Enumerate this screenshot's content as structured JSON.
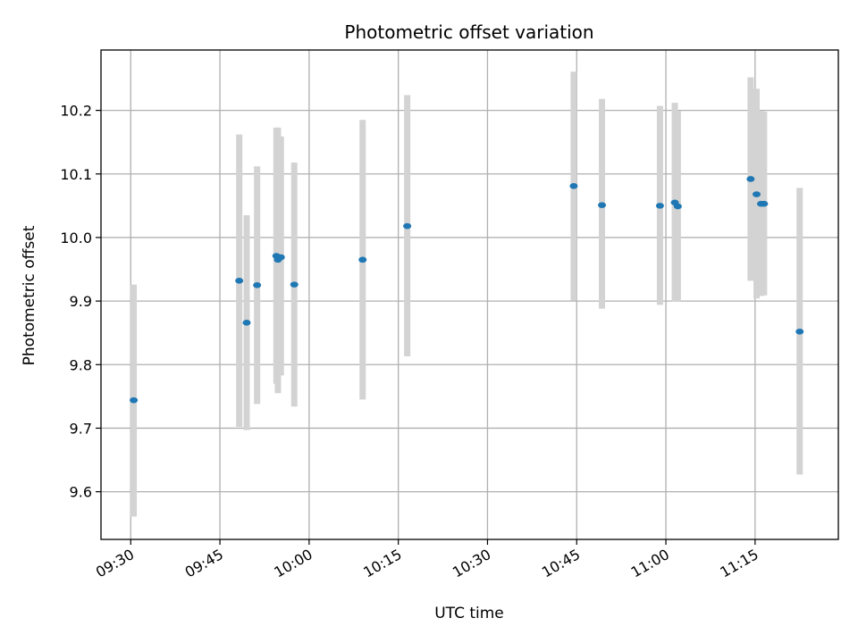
{
  "chart_data": {
    "type": "scatter",
    "title": "Photometric offset variation",
    "xlabel": "UTC time",
    "ylabel": "Photometric offset",
    "x_ticks": [
      "09:30",
      "09:45",
      "10:00",
      "10:15",
      "10:30",
      "10:45",
      "11:00",
      "11:15"
    ],
    "y_ticks": [
      "9.6",
      "9.7",
      "9.8",
      "9.9",
      "10.0",
      "10.1",
      "10.2"
    ],
    "xlim": [
      "09:25",
      "11:29"
    ],
    "ylim": [
      9.525,
      10.295
    ],
    "grid": true,
    "colors": {
      "point": "#1f77b4",
      "errorbar": "#d3d3d3",
      "grid": "#b0b0b0"
    },
    "points": [
      {
        "x": "09:30:30",
        "y": 9.744,
        "err_low": 9.561,
        "err_high": 9.926
      },
      {
        "x": "09:48:15",
        "y": 9.932,
        "err_low": 9.702,
        "err_high": 10.162
      },
      {
        "x": "09:49:30",
        "y": 9.866,
        "err_low": 9.697,
        "err_high": 10.035
      },
      {
        "x": "09:51:15",
        "y": 9.925,
        "err_low": 9.738,
        "err_high": 10.112
      },
      {
        "x": "09:54:30",
        "y": 9.971,
        "err_low": 9.77,
        "err_high": 10.173
      },
      {
        "x": "09:54:45",
        "y": 9.965,
        "err_low": 9.755,
        "err_high": 10.173
      },
      {
        "x": "09:55:15",
        "y": 9.969,
        "err_low": 9.783,
        "err_high": 10.159
      },
      {
        "x": "09:57:30",
        "y": 9.926,
        "err_low": 9.734,
        "err_high": 10.118
      },
      {
        "x": "10:09:00",
        "y": 9.965,
        "err_low": 9.745,
        "err_high": 10.185
      },
      {
        "x": "10:16:30",
        "y": 10.018,
        "err_low": 9.813,
        "err_high": 10.224
      },
      {
        "x": "10:44:30",
        "y": 10.081,
        "err_low": 9.901,
        "err_high": 10.261
      },
      {
        "x": "10:49:15",
        "y": 10.051,
        "err_low": 9.888,
        "err_high": 10.218
      },
      {
        "x": "10:59:00",
        "y": 10.05,
        "err_low": 9.894,
        "err_high": 10.207
      },
      {
        "x": "11:01:30",
        "y": 10.055,
        "err_low": 9.899,
        "err_high": 10.212
      },
      {
        "x": "11:02:00",
        "y": 10.049,
        "err_low": 9.899,
        "err_high": 10.199
      },
      {
        "x": "11:14:15",
        "y": 10.092,
        "err_low": 9.932,
        "err_high": 10.252
      },
      {
        "x": "11:15:15",
        "y": 10.068,
        "err_low": 9.904,
        "err_high": 10.234
      },
      {
        "x": "11:16:00",
        "y": 10.053,
        "err_low": 9.908,
        "err_high": 10.199
      },
      {
        "x": "11:16:30",
        "y": 10.053,
        "err_low": 9.909,
        "err_high": 10.198
      },
      {
        "x": "11:22:30",
        "y": 9.852,
        "err_low": 9.627,
        "err_high": 10.078
      }
    ]
  }
}
